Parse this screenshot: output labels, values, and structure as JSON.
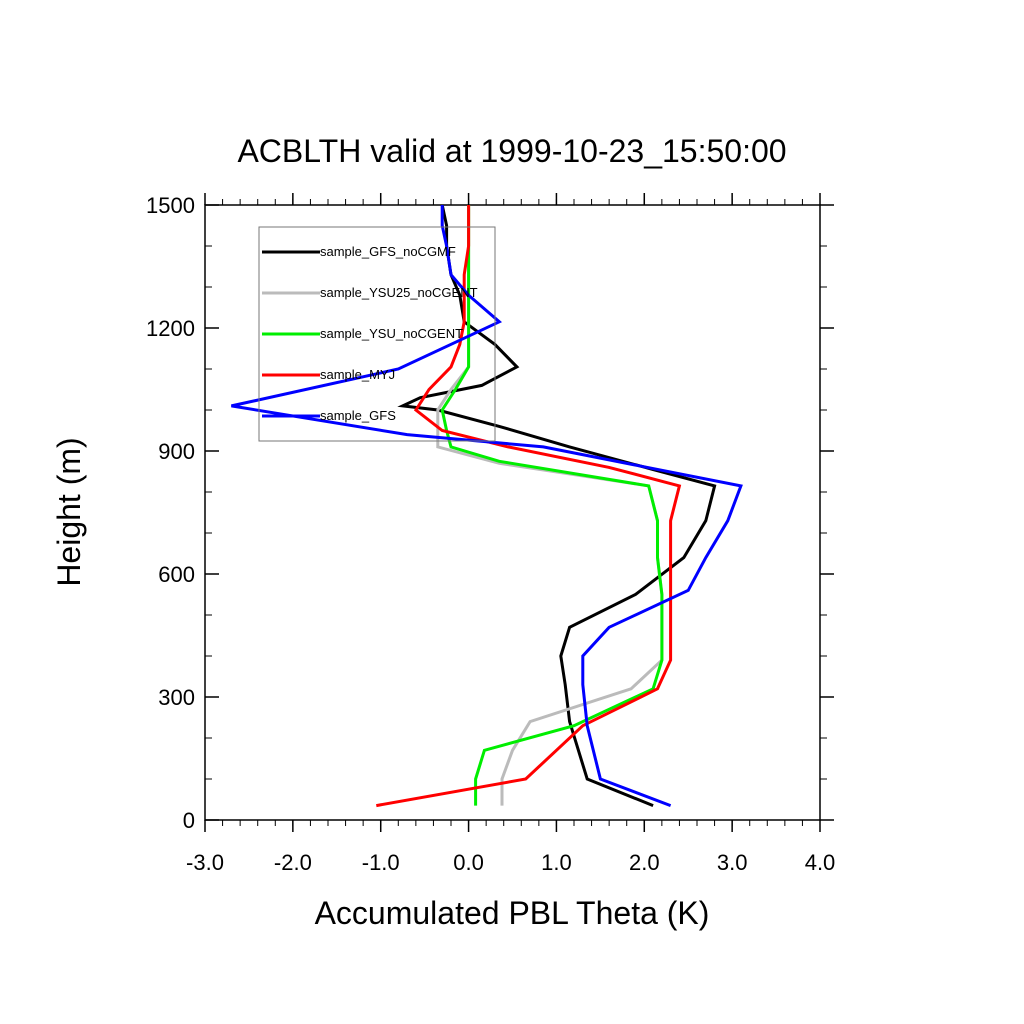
{
  "chart_data": {
    "type": "line",
    "title": "ACBLTH valid at 1999-10-23_15:50:00",
    "xlabel": "Accumulated PBL Theta (K)",
    "ylabel": "Height (m)",
    "xlim": [
      -3.0,
      4.0
    ],
    "ylim": [
      0,
      1500
    ],
    "xticks": [
      "-3.0",
      "-2.0",
      "-1.0",
      "0.0",
      "1.0",
      "2.0",
      "3.0",
      "4.0"
    ],
    "yticks": [
      "0",
      "300",
      "600",
      "900",
      "1200",
      "1500"
    ],
    "grid": false,
    "legend_position": "top-left",
    "series": [
      {
        "name": "sample_GFS_noCGMF",
        "color": "#000000",
        "points": [
          [
            2.1,
            35
          ],
          [
            1.35,
            100
          ],
          [
            1.15,
            240
          ],
          [
            1.1,
            330
          ],
          [
            1.05,
            400
          ],
          [
            1.15,
            470
          ],
          [
            1.9,
            550
          ],
          [
            2.45,
            640
          ],
          [
            2.7,
            730
          ],
          [
            2.8,
            815
          ],
          [
            2.1,
            855
          ],
          [
            1.15,
            910
          ],
          [
            0.35,
            960
          ],
          [
            -0.35,
            1000
          ],
          [
            -0.75,
            1010
          ],
          [
            -0.55,
            1030
          ],
          [
            0.15,
            1060
          ],
          [
            0.55,
            1105
          ],
          [
            0.3,
            1160
          ],
          [
            -0.05,
            1215
          ],
          [
            -0.1,
            1280
          ],
          [
            -0.2,
            1330
          ],
          [
            -0.25,
            1400
          ],
          [
            -0.25,
            1450
          ],
          [
            -0.3,
            1500
          ]
        ]
      },
      {
        "name": "sample_YSU25_noCGENT",
        "color": "#bbbbbb",
        "points": [
          [
            0.38,
            35
          ],
          [
            0.38,
            100
          ],
          [
            0.5,
            170
          ],
          [
            0.7,
            240
          ],
          [
            1.85,
            320
          ],
          [
            2.2,
            390
          ],
          [
            2.2,
            470
          ],
          [
            2.2,
            550
          ],
          [
            2.15,
            640
          ],
          [
            2.15,
            730
          ],
          [
            2.05,
            815
          ],
          [
            0.35,
            870
          ],
          [
            -0.35,
            910
          ],
          [
            -0.35,
            950
          ],
          [
            -0.35,
            1000
          ],
          [
            -0.2,
            1050
          ],
          [
            0.0,
            1105
          ],
          [
            0.0,
            1160
          ],
          [
            0.0,
            1215
          ],
          [
            0.0,
            1280
          ],
          [
            0.0,
            1330
          ],
          [
            0.0,
            1400
          ],
          [
            0.0,
            1450
          ],
          [
            0.0,
            1500
          ]
        ]
      },
      {
        "name": "sample_YSU_noCGENT",
        "color": "#00ee00",
        "points": [
          [
            0.08,
            35
          ],
          [
            0.08,
            100
          ],
          [
            0.18,
            170
          ],
          [
            1.2,
            230
          ],
          [
            2.1,
            320
          ],
          [
            2.2,
            390
          ],
          [
            2.2,
            470
          ],
          [
            2.2,
            550
          ],
          [
            2.15,
            640
          ],
          [
            2.15,
            730
          ],
          [
            2.05,
            815
          ],
          [
            0.35,
            875
          ],
          [
            -0.2,
            910
          ],
          [
            -0.25,
            950
          ],
          [
            -0.3,
            1000
          ],
          [
            -0.15,
            1050
          ],
          [
            0.0,
            1105
          ],
          [
            0.0,
            1160
          ],
          [
            0.0,
            1215
          ],
          [
            0.0,
            1280
          ],
          [
            0.0,
            1330
          ],
          [
            0.0,
            1400
          ],
          [
            0.0,
            1450
          ],
          [
            0.0,
            1500
          ]
        ]
      },
      {
        "name": "sample_MYJ",
        "color": "#ff0000",
        "points": [
          [
            -1.05,
            35
          ],
          [
            0.65,
            100
          ],
          [
            1.3,
            230
          ],
          [
            2.15,
            320
          ],
          [
            2.3,
            390
          ],
          [
            2.3,
            470
          ],
          [
            2.3,
            550
          ],
          [
            2.3,
            640
          ],
          [
            2.3,
            730
          ],
          [
            2.4,
            815
          ],
          [
            1.6,
            860
          ],
          [
            0.45,
            910
          ],
          [
            -0.3,
            950
          ],
          [
            -0.6,
            1000
          ],
          [
            -0.45,
            1050
          ],
          [
            -0.2,
            1105
          ],
          [
            -0.1,
            1160
          ],
          [
            -0.05,
            1215
          ],
          [
            -0.05,
            1280
          ],
          [
            -0.05,
            1330
          ],
          [
            0.0,
            1400
          ],
          [
            0.0,
            1450
          ],
          [
            0.0,
            1500
          ]
        ]
      },
      {
        "name": "sample_GFS",
        "color": "#0000ff",
        "points": [
          [
            2.3,
            35
          ],
          [
            1.5,
            100
          ],
          [
            1.35,
            230
          ],
          [
            1.3,
            330
          ],
          [
            1.3,
            400
          ],
          [
            1.6,
            470
          ],
          [
            2.5,
            560
          ],
          [
            2.7,
            640
          ],
          [
            2.95,
            730
          ],
          [
            3.1,
            815
          ],
          [
            0.85,
            910
          ],
          [
            -0.7,
            940
          ],
          [
            -2.7,
            1010
          ],
          [
            -0.8,
            1100
          ],
          [
            0.35,
            1215
          ],
          [
            0.0,
            1280
          ],
          [
            -0.2,
            1330
          ],
          [
            -0.25,
            1400
          ],
          [
            -0.3,
            1450
          ],
          [
            -0.3,
            1500
          ]
        ]
      }
    ]
  }
}
